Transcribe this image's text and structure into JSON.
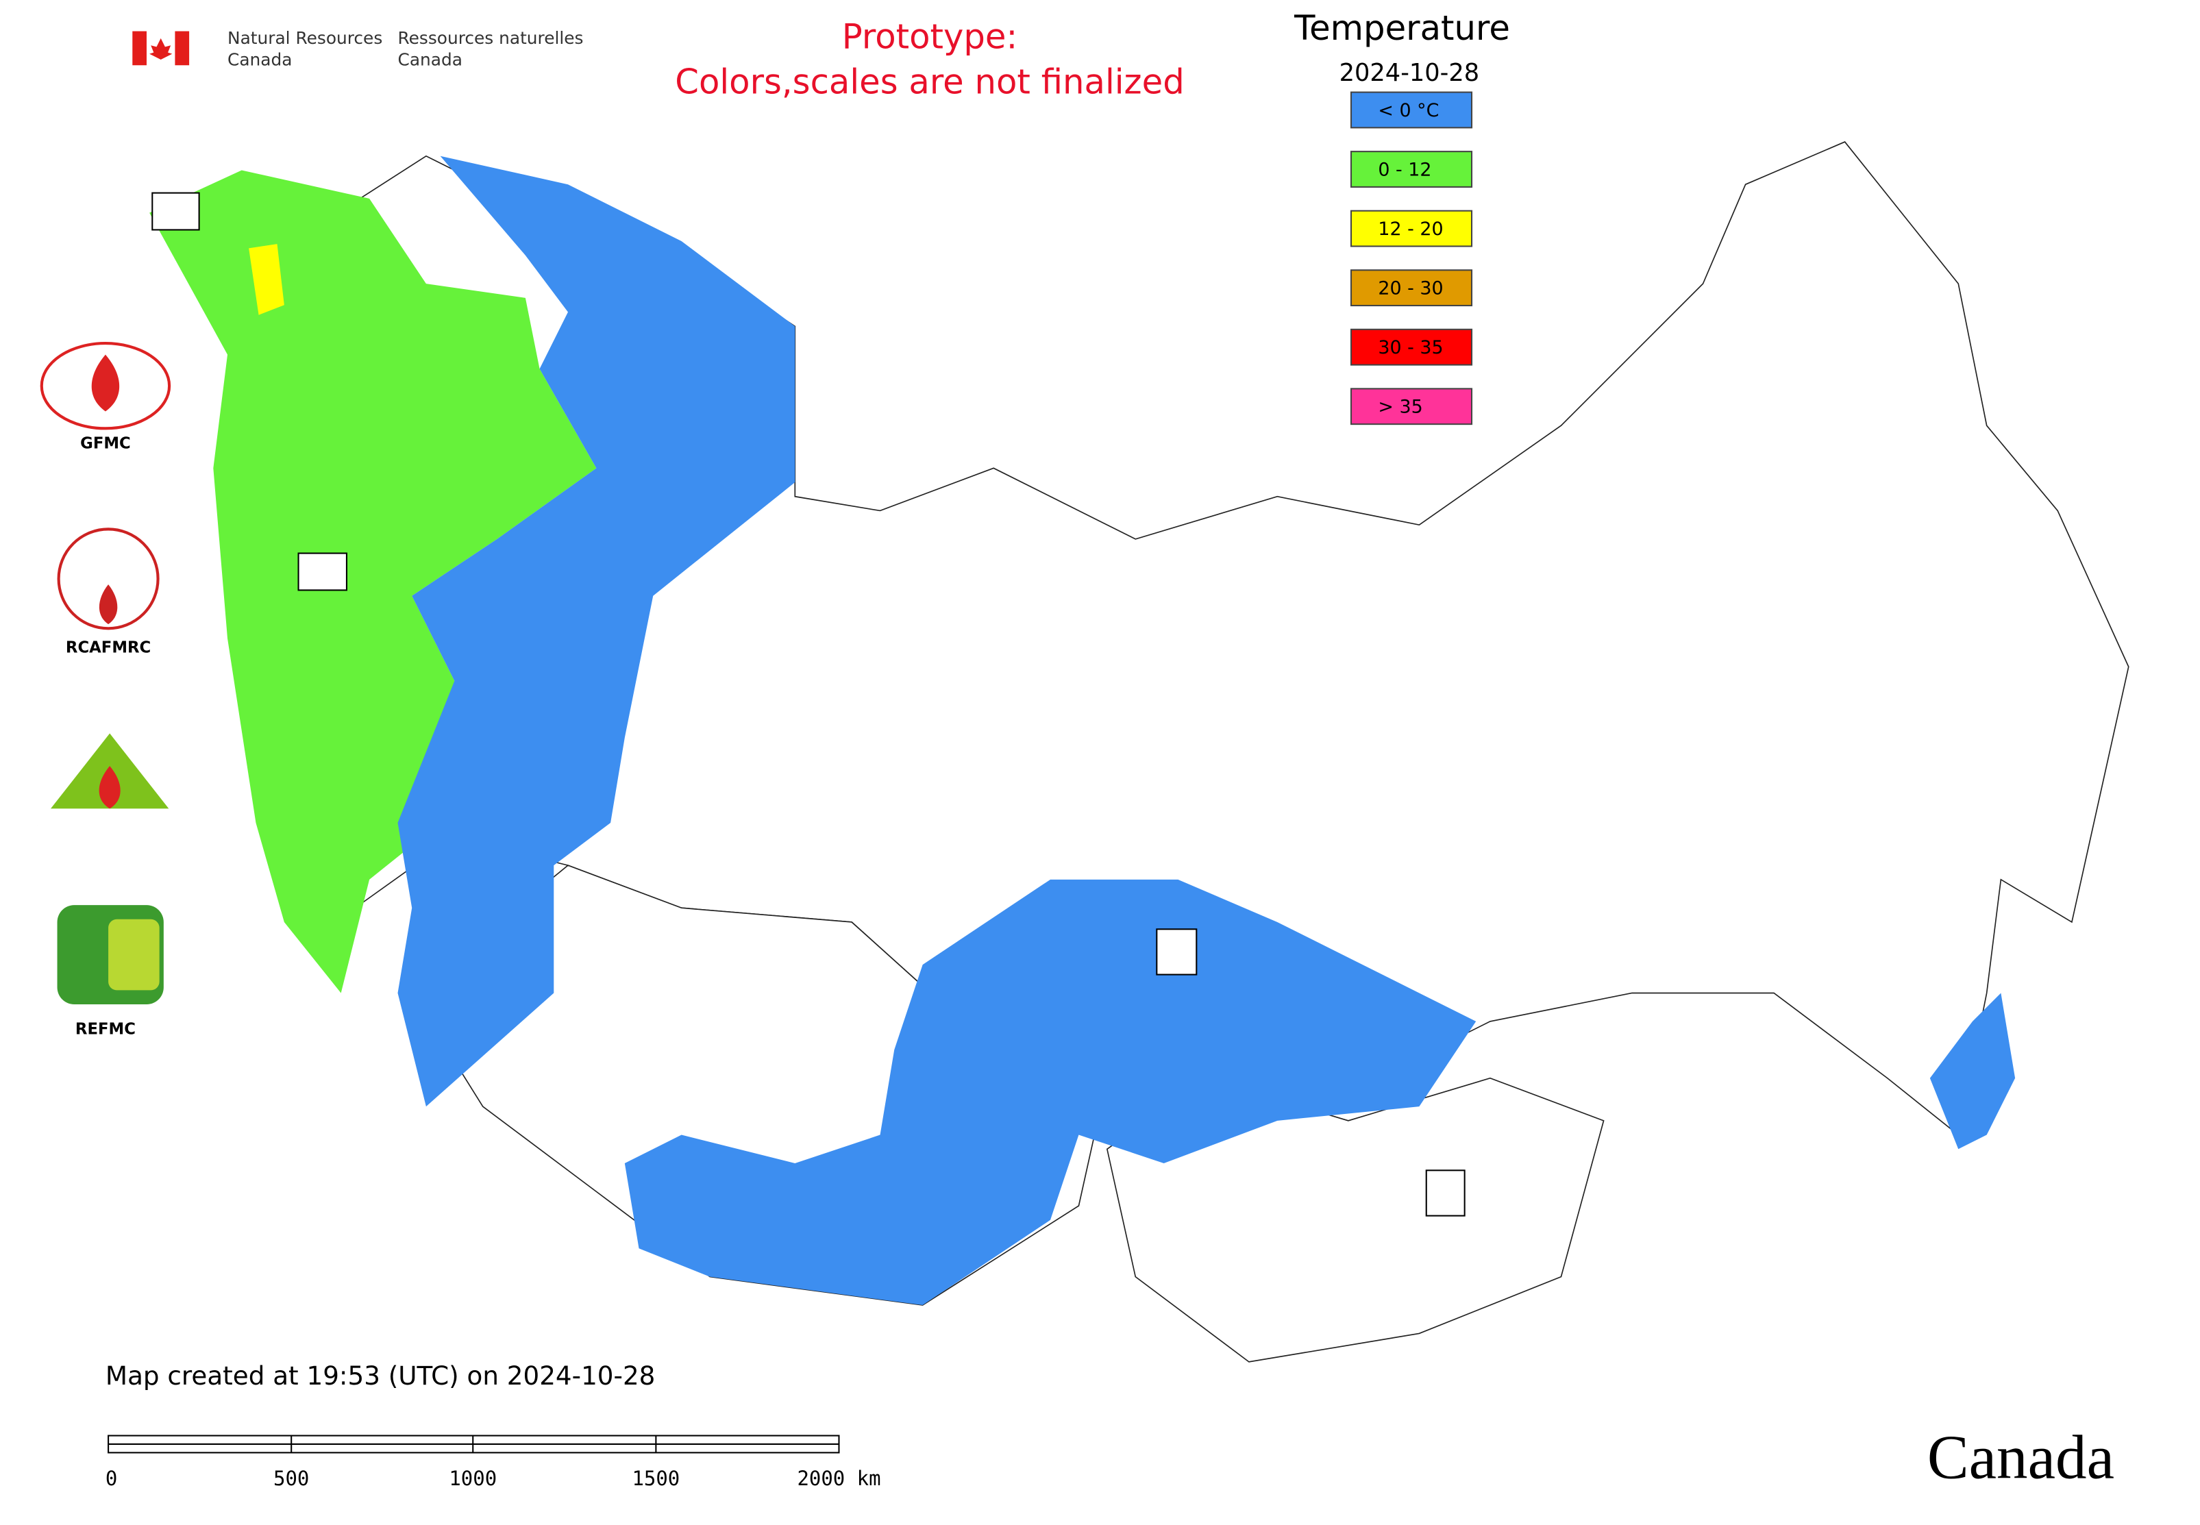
{
  "header": {
    "agency_en": [
      "Natural Resources",
      "Canada"
    ],
    "agency_fr": [
      "Ressources naturelles",
      "Canada"
    ],
    "notice": [
      "Prototype:",
      "Colors,scales are not finalized"
    ]
  },
  "legend": {
    "title": "Temperature",
    "date": "2024-10-28",
    "entries": [
      {
        "label": "< 0 °C",
        "color": "#3d8ef0"
      },
      {
        "label": "0 - 12",
        "color": "#66f23a"
      },
      {
        "label": "12 - 20",
        "color": "#ffff00"
      },
      {
        "label": "20 - 30",
        "color": "#e09a00"
      },
      {
        "label": "30 - 35",
        "color": "#ff0000"
      },
      {
        "label": "> 35",
        "color": "#ff3399"
      }
    ]
  },
  "logos": [
    "GFMC",
    "RCAFMRC",
    "REFMC"
  ],
  "footer": {
    "created": "Map created at 19:53 (UTC) on 2024-10-28",
    "scale_labels": [
      "0",
      "500",
      "1000",
      "1500",
      "2000 km"
    ],
    "wordmark": "Canada"
  }
}
